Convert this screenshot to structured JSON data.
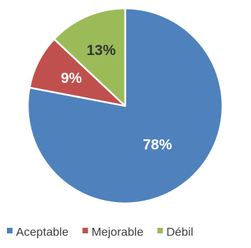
{
  "chart_data": {
    "type": "pie",
    "title": "",
    "start_angle_deg": 0,
    "direction": "clockwise",
    "legend_position": "bottom",
    "slices": [
      {
        "label": "Aceptable",
        "value": 78,
        "display": "78%",
        "color": "#4f81bd"
      },
      {
        "label": "Mejorable",
        "value": 9,
        "display": "9%",
        "color": "#c0504d"
      },
      {
        "label": "Débil",
        "value": 13,
        "display": "13%",
        "color": "#9bbb59"
      }
    ]
  }
}
